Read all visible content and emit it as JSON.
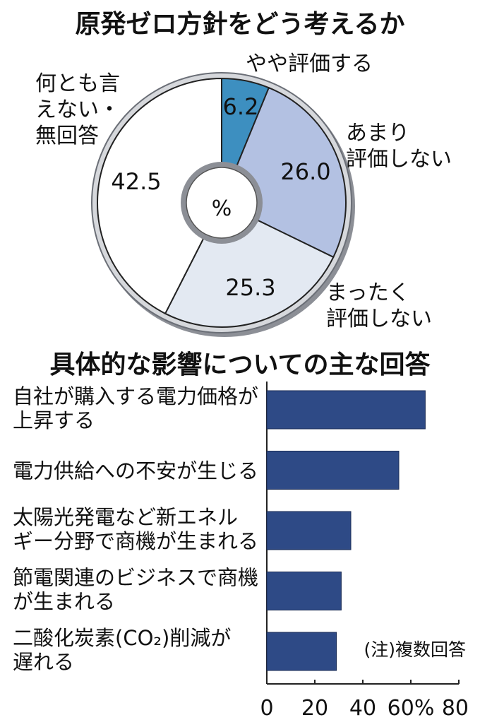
{
  "chart_data": [
    {
      "type": "pie",
      "title": "原発ゼロ方針をどう考えるか",
      "unit": "%",
      "slices": [
        {
          "label_lines": [
            "やや評価する"
          ],
          "value": 6.2,
          "value_text": "6.2",
          "color": "#3d8fc0"
        },
        {
          "label_lines": [
            "あまり",
            "評価しない"
          ],
          "value": 26.0,
          "value_text": "26.0",
          "color": "#b3c1e2"
        },
        {
          "label_lines": [
            "まったく",
            "評価しない"
          ],
          "value": 25.3,
          "value_text": "25.3",
          "color": "#e3e9f2"
        },
        {
          "label_lines": [
            "何とも言",
            "えない・",
            "無回答"
          ],
          "value": 42.5,
          "value_text": "42.5",
          "color": "#ffffff"
        }
      ]
    },
    {
      "type": "bar",
      "orientation": "horizontal",
      "title": "具体的な影響についての主な回答",
      "categories": [
        [
          "自社が購入する電力価格が",
          "上昇する"
        ],
        [
          "電力供給への不安が生じる"
        ],
        [
          "太陽光発電など新エネル",
          "ギー分野で商機が生まれる"
        ],
        [
          "節電関連のビジネスで商機",
          "が生まれる"
        ],
        [
          "二酸化炭素(CO₂)削減が",
          "遅れる"
        ]
      ],
      "values": [
        66,
        55,
        35,
        31,
        29
      ],
      "xlim": [
        0,
        80
      ],
      "ticks": [
        "0",
        "20",
        "40",
        "60%",
        "80"
      ],
      "tick_values": [
        0,
        20,
        40,
        60,
        80
      ],
      "bar_color": "#2e4a86",
      "note": "(注)複数回答"
    }
  ]
}
